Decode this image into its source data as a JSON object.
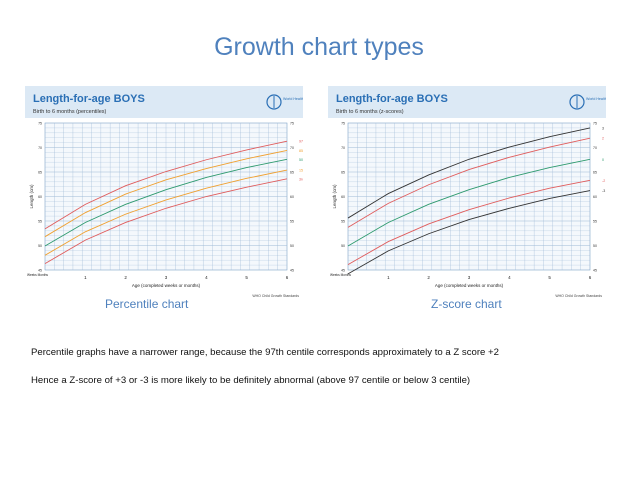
{
  "slide": {
    "title": "Growth chart types",
    "left_caption": "Percentile chart",
    "right_caption": "Z-score chart",
    "note1": "Percentile graphs have a narrower range, because the 97th centile corresponds approximately to a Z score +2",
    "note2": "Hence a Z-score of +3 or -3 is more likely to be definitely abnormal (above 97 centile or below 3 centile)"
  },
  "chart_data": [
    {
      "type": "line",
      "title": "Length-for-age BOYS",
      "subtitle": "Birth to 6 months (percentiles)",
      "xlabel": "Age (completed weeks or months)",
      "ylabel": "Length (cm)",
      "source": "WHO Child Growth Standards",
      "x_axis_prefix": "Weeks Months",
      "x": [
        0,
        1,
        2,
        3,
        4,
        5,
        6
      ],
      "x_ticks": [
        "1",
        "2",
        "3",
        "4",
        "5",
        "6"
      ],
      "ylim": [
        45,
        75
      ],
      "grid": true,
      "series": [
        {
          "name": "97th",
          "color": "#e05c5c",
          "values": [
            53.4,
            58.4,
            62.2,
            65.1,
            67.5,
            69.5,
            71.3
          ]
        },
        {
          "name": "85th",
          "color": "#f0a030",
          "values": [
            51.8,
            56.7,
            60.5,
            63.4,
            65.7,
            67.7,
            69.4
          ]
        },
        {
          "name": "50th",
          "color": "#2e9a6e",
          "values": [
            49.9,
            54.7,
            58.4,
            61.4,
            63.9,
            65.9,
            67.6
          ]
        },
        {
          "name": "15th",
          "color": "#f0a030",
          "values": [
            48.0,
            52.8,
            56.4,
            59.3,
            61.7,
            63.7,
            65.4
          ]
        },
        {
          "name": "3rd",
          "color": "#e05c5c",
          "values": [
            46.3,
            51.1,
            54.7,
            57.6,
            60.0,
            61.9,
            63.6
          ]
        }
      ]
    },
    {
      "type": "line",
      "title": "Length-for-age BOYS",
      "subtitle": "Birth to 6 months (z-scores)",
      "xlabel": "Age (completed weeks or months)",
      "ylabel": "Length (cm)",
      "source": "WHO Child Growth Standards",
      "x_axis_prefix": "Weeks Months",
      "x": [
        0,
        1,
        2,
        3,
        4,
        5,
        6
      ],
      "x_ticks": [
        "1",
        "2",
        "3",
        "4",
        "5",
        "6"
      ],
      "ylim": [
        45,
        75
      ],
      "grid": true,
      "series": [
        {
          "name": "3",
          "color": "#333333",
          "values": [
            55.6,
            60.6,
            64.4,
            67.6,
            70.1,
            72.2,
            74.0
          ]
        },
        {
          "name": "2",
          "color": "#e05c5c",
          "values": [
            53.7,
            58.6,
            62.4,
            65.5,
            68.0,
            70.1,
            71.9
          ]
        },
        {
          "name": "0",
          "color": "#2e9a6e",
          "values": [
            49.9,
            54.7,
            58.4,
            61.4,
            63.9,
            65.9,
            67.6
          ]
        },
        {
          "name": "-2",
          "color": "#e05c5c",
          "values": [
            46.1,
            50.8,
            54.4,
            57.3,
            59.7,
            61.7,
            63.3
          ]
        },
        {
          "name": "-3",
          "color": "#333333",
          "values": [
            44.2,
            48.9,
            52.4,
            55.3,
            57.6,
            59.6,
            61.2
          ]
        }
      ]
    }
  ],
  "panel_text": {
    "who_label": "World Health Organization"
  },
  "colors": {
    "title_blue": "#4f81bd",
    "chart_title_blue": "#2a6fb5",
    "header_band": "#dce9f5",
    "plot_bg": "#f4f8fc",
    "grid": "#9db9d6"
  }
}
